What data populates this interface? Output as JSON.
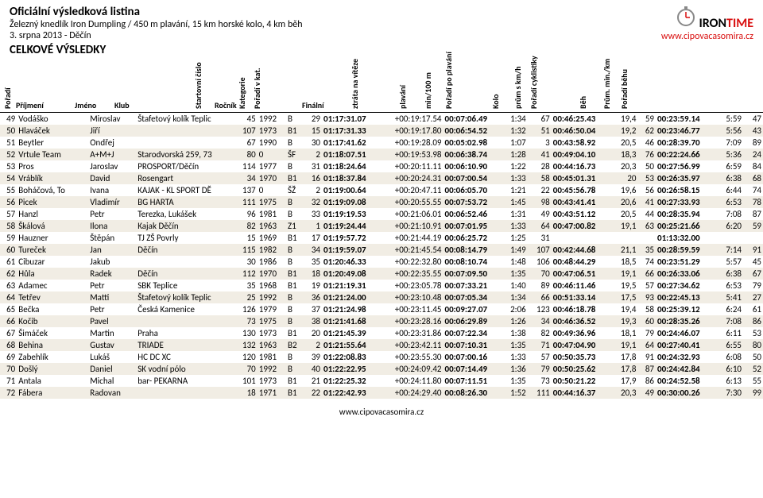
{
  "header": {
    "title_main": "Oficiální výsledková listina",
    "title_sub": "Železný knedlík Iron Dumpling / 450 m plavání, 15 km horské kolo, 4 km běh",
    "title_date": "3. srpna 2013 - Děčín",
    "section_title": "CELKOVÉ VÝSLEDKY",
    "logo_brand": "IRON",
    "logo_brand2": "TIME",
    "logo_url": "www.cipovacasomira.cz",
    "logo_brand_color": "#000000",
    "logo_brand2_color": "#d90e0e"
  },
  "columns": {
    "poradi": "Pořadí",
    "prijmeni": "Příjmení",
    "jmeno": "Jméno",
    "klub": "Klub",
    "startovni": "Startovní číslo",
    "rocnik": "Ročník",
    "kategorie": "Kategorie",
    "poradi_kat": "Pořadí v kat.",
    "finalni": "Finální",
    "ztrata": "ztráta na vítěze",
    "plavani": "plavání",
    "min100": "min/100 m",
    "poradi_plav": "Pořadí po plavání",
    "kolo": "Kolo",
    "kmh": "prům s km/h",
    "poradi_cykl": "Pořadí cyklistiky",
    "beh": "Běh",
    "minkm": "Prům. min./km",
    "poradi_beh": "Pořadí běhu"
  },
  "rows": [
    {
      "pr": "49",
      "prij": "Vodáško",
      "jm": "Miroslav",
      "klub": "Štafetový kolík Teplic",
      "sc": "45",
      "roc": "1992",
      "kat": "B",
      "pk": "29",
      "fin": "01:17:31.07",
      "ztr": "+00:19:17.54",
      "plav": "00:07:06.49",
      "min100": "1:34",
      "ppp": "67",
      "kolo": "00:46:25.43",
      "kmh": "19,4",
      "pcykl": "59",
      "beh": "00:23:59.14",
      "minkm": "5:59",
      "pbeh": "47"
    },
    {
      "pr": "50",
      "prij": "Hlaváček",
      "jm": "Jiří",
      "klub": "",
      "sc": "107",
      "roc": "1973",
      "kat": "B1",
      "pk": "15",
      "fin": "01:17:31.33",
      "ztr": "+00:19:17.80",
      "plav": "00:06:54.52",
      "min100": "1:32",
      "ppp": "51",
      "kolo": "00:46:50.04",
      "kmh": "19,2",
      "pcykl": "62",
      "beh": "00:23:46.77",
      "minkm": "5:56",
      "pbeh": "43"
    },
    {
      "pr": "51",
      "prij": "Beytler",
      "jm": "Ondřej",
      "klub": "",
      "sc": "67",
      "roc": "1990",
      "kat": "B",
      "pk": "30",
      "fin": "01:17:41.62",
      "ztr": "+00:19:28.09",
      "plav": "00:05:02.98",
      "min100": "1:07",
      "ppp": "3",
      "kolo": "00:43:58.92",
      "kmh": "20,5",
      "pcykl": "46",
      "beh": "00:28:39.70",
      "minkm": "7:09",
      "pbeh": "89"
    },
    {
      "pr": "52",
      "prij": "Vrtule Team",
      "jm": "A+M+J",
      "klub": "Starodvorská 259, 73",
      "sc": "80",
      "roc": "0",
      "kat": "ŠF",
      "pk": "2",
      "fin": "01:18:07.51",
      "ztr": "+00:19:53.98",
      "plav": "00:06:38.74",
      "min100": "1:28",
      "ppp": "41",
      "kolo": "00:49:04.10",
      "kmh": "18,3",
      "pcykl": "76",
      "beh": "00:22:24.66",
      "minkm": "5:36",
      "pbeh": "24"
    },
    {
      "pr": "53",
      "prij": "Pros",
      "jm": "Jaroslav",
      "klub": "PROSPORT/Děčín",
      "sc": "114",
      "roc": "1977",
      "kat": "B",
      "pk": "31",
      "fin": "01:18:24.64",
      "ztr": "+00:20:11.11",
      "plav": "00:06:10.90",
      "min100": "1:22",
      "ppp": "28",
      "kolo": "00:44:16.73",
      "kmh": "20,3",
      "pcykl": "50",
      "beh": "00:27:56.99",
      "minkm": "6:59",
      "pbeh": "84"
    },
    {
      "pr": "54",
      "prij": "Vráblík",
      "jm": "David",
      "klub": "Rosengart",
      "sc": "34",
      "roc": "1970",
      "kat": "B1",
      "pk": "16",
      "fin": "01:18:37.84",
      "ztr": "+00:20:24.31",
      "plav": "00:07:00.54",
      "min100": "1:33",
      "ppp": "58",
      "kolo": "00:45:01.31",
      "kmh": "20",
      "pcykl": "53",
      "beh": "00:26:35.97",
      "minkm": "6:38",
      "pbeh": "68"
    },
    {
      "pr": "55",
      "prij": "Boháčová, To",
      "jm": "Ivana",
      "klub": "KAJAK - KL SPORT DĚ",
      "sc": "137",
      "roc": "0",
      "kat": "ŠŽ",
      "pk": "2",
      "fin": "01:19:00.64",
      "ztr": "+00:20:47.11",
      "plav": "00:06:05.70",
      "min100": "1:21",
      "ppp": "22",
      "kolo": "00:45:56.78",
      "kmh": "19,6",
      "pcykl": "56",
      "beh": "00:26:58.15",
      "minkm": "6:44",
      "pbeh": "74"
    },
    {
      "pr": "56",
      "prij": "Picek",
      "jm": "Vladimír",
      "klub": "BG HARTA",
      "sc": "111",
      "roc": "1975",
      "kat": "B",
      "pk": "32",
      "fin": "01:19:09.08",
      "ztr": "+00:20:55.55",
      "plav": "00:07:53.72",
      "min100": "1:45",
      "ppp": "98",
      "kolo": "00:43:41.41",
      "kmh": "20,6",
      "pcykl": "41",
      "beh": "00:27:33.93",
      "minkm": "6:53",
      "pbeh": "78"
    },
    {
      "pr": "57",
      "prij": "Hanzl",
      "jm": "Petr",
      "klub": "Terezka, Lukášek",
      "sc": "96",
      "roc": "1981",
      "kat": "B",
      "pk": "33",
      "fin": "01:19:19.53",
      "ztr": "+00:21:06.01",
      "plav": "00:06:52.46",
      "min100": "1:31",
      "ppp": "49",
      "kolo": "00:43:51.12",
      "kmh": "20,5",
      "pcykl": "44",
      "beh": "00:28:35.94",
      "minkm": "7:08",
      "pbeh": "87"
    },
    {
      "pr": "58",
      "prij": "Škálová",
      "jm": "Ilona",
      "klub": "Kajak Děčín",
      "sc": "82",
      "roc": "1963",
      "kat": "Z1",
      "pk": "1",
      "fin": "01:19:24.44",
      "ztr": "+00:21:10.91",
      "plav": "00:07:01.95",
      "min100": "1:33",
      "ppp": "64",
      "kolo": "00:47:00.82",
      "kmh": "19,1",
      "pcykl": "63",
      "beh": "00:25:21.66",
      "minkm": "6:20",
      "pbeh": "59"
    },
    {
      "pr": "59",
      "prij": "Hauzner",
      "jm": "Štěpán",
      "klub": "TJ ZŠ Povrly",
      "sc": "15",
      "roc": "1969",
      "kat": "B1",
      "pk": "17",
      "fin": "01:19:57.72",
      "ztr": "+00:21:44.19",
      "plav": "00:06:25.72",
      "min100": "1:25",
      "ppp": "31",
      "kolo": "",
      "kmh": "",
      "pcykl": "",
      "beh": "01:13:32.00",
      "minkm": "",
      "pbeh": ""
    },
    {
      "pr": "60",
      "prij": "Tureček",
      "jm": "Jan",
      "klub": "Děčín",
      "sc": "115",
      "roc": "1982",
      "kat": "B",
      "pk": "34",
      "fin": "01:19:59.07",
      "ztr": "+00:21:45.54",
      "plav": "00:08:14.79",
      "min100": "1:49",
      "ppp": "107",
      "kolo": "00:42:44.68",
      "kmh": "21,1",
      "pcykl": "35",
      "beh": "00:28:59.59",
      "minkm": "7:14",
      "pbeh": "91"
    },
    {
      "pr": "61",
      "prij": "Cibuzar",
      "jm": "Jakub",
      "klub": "",
      "sc": "30",
      "roc": "1986",
      "kat": "B",
      "pk": "35",
      "fin": "01:20:46.33",
      "ztr": "+00:22:32.80",
      "plav": "00:08:10.74",
      "min100": "1:48",
      "ppp": "106",
      "kolo": "00:48:44.29",
      "kmh": "18,5",
      "pcykl": "74",
      "beh": "00:23:51.29",
      "minkm": "5:57",
      "pbeh": "45"
    },
    {
      "pr": "62",
      "prij": "Hůla",
      "jm": "Radek",
      "klub": "Děčín",
      "sc": "112",
      "roc": "1970",
      "kat": "B1",
      "pk": "18",
      "fin": "01:20:49.08",
      "ztr": "+00:22:35.55",
      "plav": "00:07:09.50",
      "min100": "1:35",
      "ppp": "70",
      "kolo": "00:47:06.51",
      "kmh": "19,1",
      "pcykl": "66",
      "beh": "00:26:33.06",
      "minkm": "6:38",
      "pbeh": "67"
    },
    {
      "pr": "63",
      "prij": "Adamec",
      "jm": "Petr",
      "klub": "SBK Teplice",
      "sc": "35",
      "roc": "1968",
      "kat": "B1",
      "pk": "19",
      "fin": "01:21:19.31",
      "ztr": "+00:23:05.78",
      "plav": "00:07:33.21",
      "min100": "1:40",
      "ppp": "89",
      "kolo": "00:46:11.46",
      "kmh": "19,5",
      "pcykl": "57",
      "beh": "00:27:34.62",
      "minkm": "6:53",
      "pbeh": "79"
    },
    {
      "pr": "64",
      "prij": "Tetřev",
      "jm": "Matti",
      "klub": "Štafetový kolík Teplic",
      "sc": "25",
      "roc": "1992",
      "kat": "B",
      "pk": "36",
      "fin": "01:21:24.00",
      "ztr": "+00:23:10.48",
      "plav": "00:07:05.34",
      "min100": "1:34",
      "ppp": "66",
      "kolo": "00:51:33.14",
      "kmh": "17,5",
      "pcykl": "93",
      "beh": "00:22:45.13",
      "minkm": "5:41",
      "pbeh": "27"
    },
    {
      "pr": "65",
      "prij": "Bečka",
      "jm": "Petr",
      "klub": "Česká Kamenice",
      "sc": "126",
      "roc": "1979",
      "kat": "B",
      "pk": "37",
      "fin": "01:21:24.98",
      "ztr": "+00:23:11.45",
      "plav": "00:09:27.07",
      "min100": "2:06",
      "ppp": "123",
      "kolo": "00:46:18.78",
      "kmh": "19,4",
      "pcykl": "58",
      "beh": "00:25:39.12",
      "minkm": "6:24",
      "pbeh": "61"
    },
    {
      "pr": "66",
      "prij": "Kočib",
      "jm": "Pavel",
      "klub": "",
      "sc": "73",
      "roc": "1975",
      "kat": "B",
      "pk": "38",
      "fin": "01:21:41.68",
      "ztr": "+00:23:28.16",
      "plav": "00:06:29.89",
      "min100": "1:26",
      "ppp": "34",
      "kolo": "00:46:36.52",
      "kmh": "19,3",
      "pcykl": "60",
      "beh": "00:28:35.26",
      "minkm": "7:08",
      "pbeh": "86"
    },
    {
      "pr": "67",
      "prij": "Šimáček",
      "jm": "Martin",
      "klub": "Praha",
      "sc": "130",
      "roc": "1973",
      "kat": "B1",
      "pk": "20",
      "fin": "01:21:45.39",
      "ztr": "+00:23:31.86",
      "plav": "00:07:22.34",
      "min100": "1:38",
      "ppp": "82",
      "kolo": "00:49:36.96",
      "kmh": "18,1",
      "pcykl": "79",
      "beh": "00:24:46.07",
      "minkm": "6:11",
      "pbeh": "53"
    },
    {
      "pr": "68",
      "prij": "Behina",
      "jm": "Gustav",
      "klub": "TRIADE",
      "sc": "132",
      "roc": "1963",
      "kat": "B2",
      "pk": "2",
      "fin": "01:21:55.64",
      "ztr": "+00:23:42.11",
      "plav": "00:07:10.31",
      "min100": "1:35",
      "ppp": "71",
      "kolo": "00:47:04.90",
      "kmh": "19,1",
      "pcykl": "64",
      "beh": "00:27:40.41",
      "minkm": "6:55",
      "pbeh": "80"
    },
    {
      "pr": "69",
      "prij": "Zabehlík",
      "jm": "Lukáš",
      "klub": "HC DC XC",
      "sc": "120",
      "roc": "1981",
      "kat": "B",
      "pk": "39",
      "fin": "01:22:08.83",
      "ztr": "+00:23:55.30",
      "plav": "00:07:00.16",
      "min100": "1:33",
      "ppp": "57",
      "kolo": "00:50:35.73",
      "kmh": "17,8",
      "pcykl": "91",
      "beh": "00:24:32.93",
      "minkm": "6:08",
      "pbeh": "50"
    },
    {
      "pr": "70",
      "prij": "Došlý",
      "jm": "Daniel",
      "klub": "SK vodní pólo",
      "sc": "70",
      "roc": "1992",
      "kat": "B",
      "pk": "40",
      "fin": "01:22:22.95",
      "ztr": "+00:24:09.42",
      "plav": "00:07:14.49",
      "min100": "1:36",
      "ppp": "79",
      "kolo": "00:50:25.62",
      "kmh": "17,8",
      "pcykl": "87",
      "beh": "00:24:42.84",
      "minkm": "6:10",
      "pbeh": "52"
    },
    {
      "pr": "71",
      "prij": "Antala",
      "jm": "Michal",
      "klub": "bar- PEKARNA",
      "sc": "101",
      "roc": "1973",
      "kat": "B1",
      "pk": "21",
      "fin": "01:22:25.32",
      "ztr": "+00:24:11.80",
      "plav": "00:07:11.51",
      "min100": "1:35",
      "ppp": "73",
      "kolo": "00:50:21.22",
      "kmh": "17,9",
      "pcykl": "86",
      "beh": "00:24:52.58",
      "minkm": "6:13",
      "pbeh": "55"
    },
    {
      "pr": "72",
      "prij": "Fábera",
      "jm": "Radovan",
      "klub": "",
      "sc": "18",
      "roc": "1971",
      "kat": "B1",
      "pk": "22",
      "fin": "01:22:42.93",
      "ztr": "+00:24:29.40",
      "plav": "00:08:26.30",
      "min100": "1:52",
      "ppp": "111",
      "kolo": "00:44:16.37",
      "kmh": "20,3",
      "pcykl": "49",
      "beh": "00:30:00.26",
      "minkm": "7:30",
      "pbeh": "99"
    }
  ],
  "footer": {
    "url": "www.cipovacasomira.cz"
  },
  "colors": {
    "row_even_bg": "#f1ede4",
    "row_odd_bg": "#ffffff",
    "header_border": "#000000"
  }
}
